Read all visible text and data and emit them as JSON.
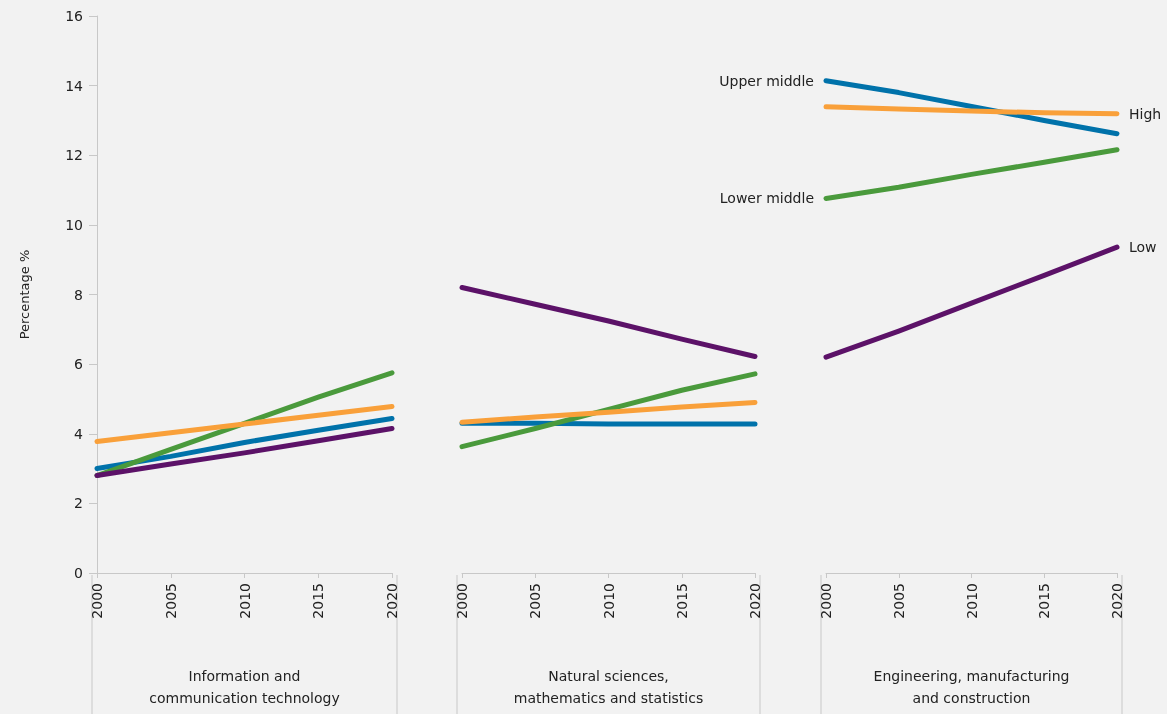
{
  "chart_data": [
    {
      "type": "line",
      "xlabel": "Information and communication technology",
      "ylabel": "Percentage %",
      "x": [
        2000,
        2005,
        2010,
        2015,
        2020
      ],
      "xlim": [
        2000,
        2020
      ],
      "xticks": [
        2000,
        2005,
        2010,
        2015,
        2020
      ],
      "ylim": [
        0,
        16
      ],
      "yticks": [
        0,
        2,
        4,
        6,
        8,
        10,
        12,
        14,
        16
      ],
      "grid": false,
      "legend": false,
      "marker": "none",
      "line_style": "solid",
      "series": [
        {
          "color": "#0072aa",
          "values": [
            3.0,
            3.35,
            3.75,
            4.1,
            4.44
          ]
        },
        {
          "color": "#4a9a3c",
          "values": [
            2.8,
            3.55,
            4.3,
            5.05,
            5.75
          ]
        },
        {
          "color": "#f9a03a",
          "values": [
            3.78,
            4.03,
            4.28,
            4.53,
            4.78
          ]
        },
        {
          "color": "#5c1268",
          "values": [
            2.8,
            3.13,
            3.45,
            3.8,
            4.15
          ]
        }
      ]
    },
    {
      "type": "line",
      "xlabel": "Natural sciences, mathematics and statistics",
      "x": [
        2000,
        2005,
        2010,
        2015,
        2020
      ],
      "xlim": [
        2000,
        2020
      ],
      "xticks": [
        2000,
        2005,
        2010,
        2015,
        2020
      ],
      "ylim": [
        0,
        16
      ],
      "yticks": [
        0,
        2,
        4,
        6,
        8,
        10,
        12,
        14,
        16
      ],
      "tick_labels": "x",
      "grid": false,
      "legend": false,
      "marker": "none",
      "line_style": "solid",
      "series": [
        {
          "color": "#0072aa",
          "values": [
            4.3,
            4.3,
            4.28,
            4.28,
            4.28
          ]
        },
        {
          "color": "#4a9a3c",
          "values": [
            3.63,
            4.15,
            4.7,
            5.25,
            5.72
          ]
        },
        {
          "color": "#f9a03a",
          "values": [
            4.33,
            4.48,
            4.62,
            4.77,
            4.9
          ]
        },
        {
          "color": "#5c1268",
          "values": [
            8.2,
            7.72,
            7.24,
            6.72,
            6.22
          ]
        }
      ]
    },
    {
      "type": "line",
      "xlabel": "Engineering, manufacturing and construction",
      "x": [
        2000,
        2005,
        2010,
        2015,
        2020
      ],
      "xlim": [
        2000,
        2020
      ],
      "xticks": [
        2000,
        2005,
        2010,
        2015,
        2020
      ],
      "ylim": [
        0,
        16
      ],
      "yticks": [
        0,
        2,
        4,
        6,
        8,
        10,
        12,
        14,
        16
      ],
      "tick_labels": "x",
      "grid": false,
      "legend": false,
      "marker": "none",
      "line_style": "solid",
      "series": [
        {
          "name": "Upper middle",
          "color": "#0072aa",
          "values": [
            14.14,
            13.8,
            13.4,
            13.0,
            12.62
          ]
        },
        {
          "name": "Lower middle",
          "color": "#4a9a3c",
          "values": [
            10.76,
            11.08,
            11.45,
            11.8,
            12.16
          ]
        },
        {
          "name": "High",
          "color": "#f9a03a",
          "values": [
            13.39,
            13.33,
            13.27,
            13.22,
            13.19
          ]
        },
        {
          "name": "Low",
          "color": "#5c1268",
          "values": [
            6.2,
            6.95,
            7.75,
            8.55,
            9.36
          ]
        }
      ]
    }
  ]
}
